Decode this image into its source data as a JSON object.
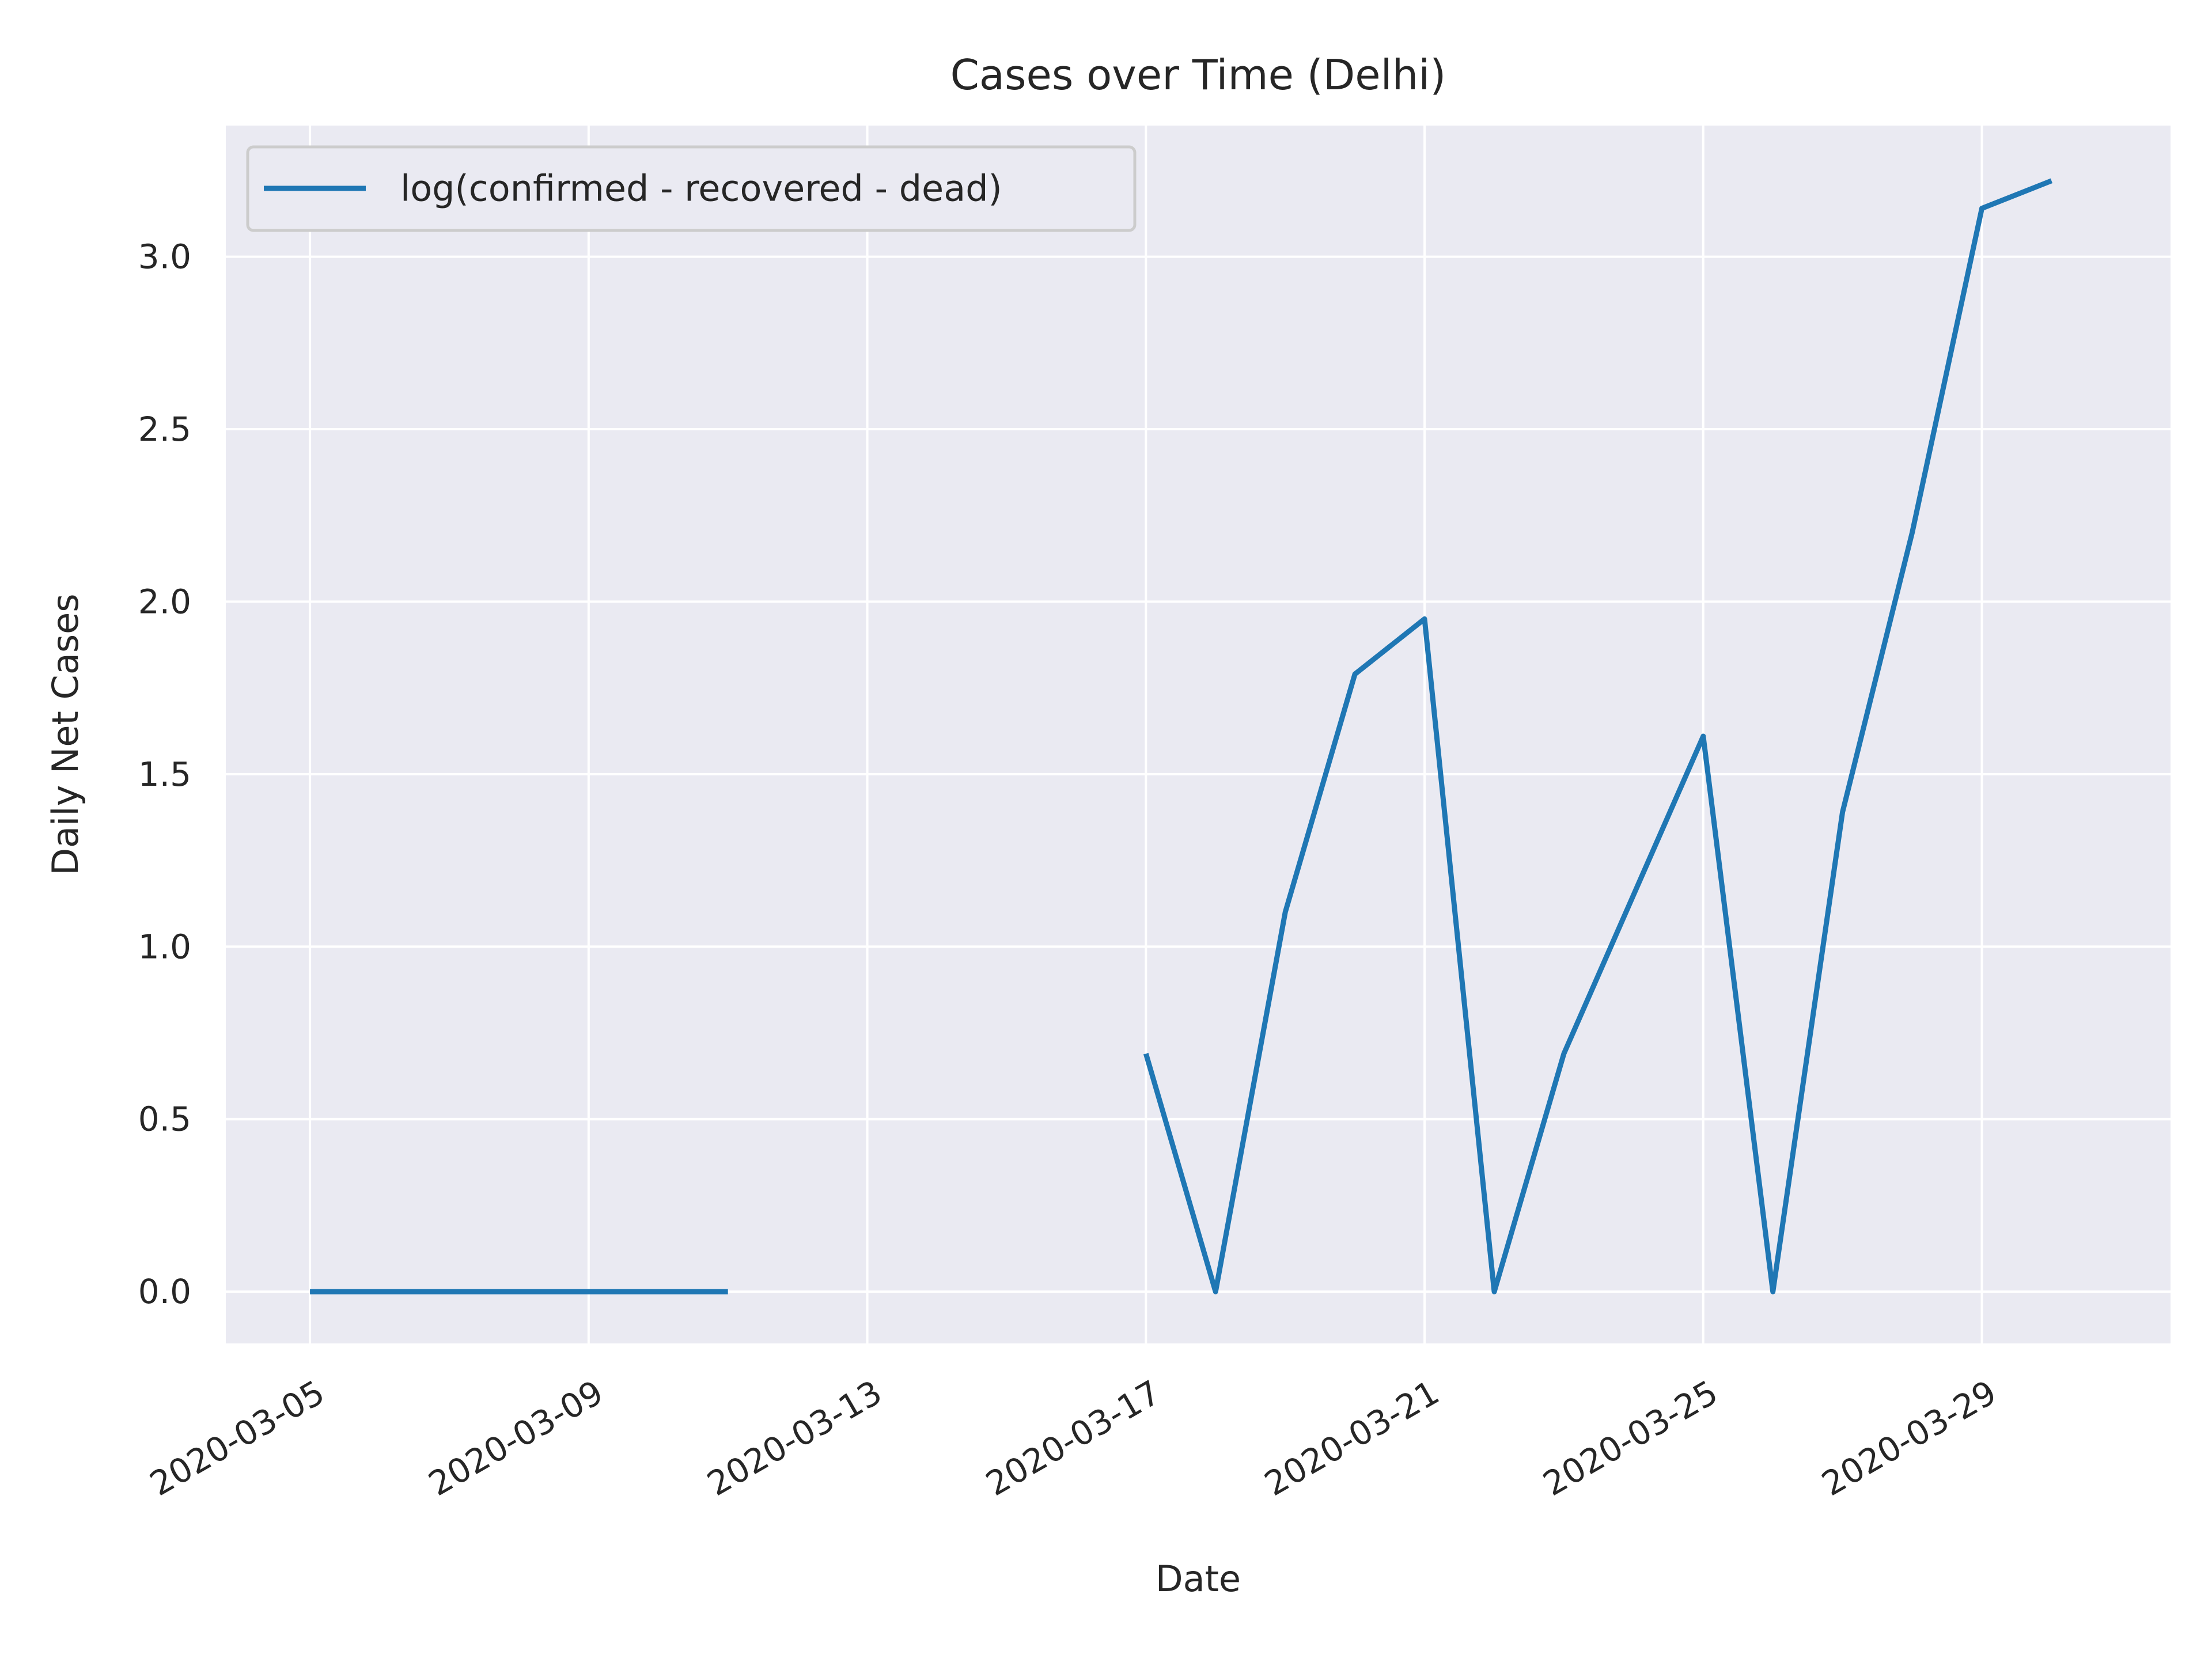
{
  "chart_data": {
    "type": "line",
    "title": "Cases over Time (Delhi)",
    "xlabel": "Date",
    "ylabel": "Daily Net Cases",
    "xlim": [
      "2020-03-03T19:00",
      "2020-03-31T17:00"
    ],
    "ylim": [
      -0.15,
      3.38
    ],
    "x_ticks": [
      "2020-03-05",
      "2020-03-09",
      "2020-03-13",
      "2020-03-17",
      "2020-03-21",
      "2020-03-25",
      "2020-03-29"
    ],
    "y_ticks": [
      0.0,
      0.5,
      1.0,
      1.5,
      2.0,
      2.5,
      3.0
    ],
    "y_tick_labels": [
      "0.0",
      "0.5",
      "1.0",
      "1.5",
      "2.0",
      "2.5",
      "3.0"
    ],
    "grid": true,
    "legend_position": "top-left",
    "colors": {
      "background": "#eaeaf2",
      "grid": "#ffffff",
      "series": "#1f77b4"
    },
    "series": [
      {
        "name": "log(confirmed - recovered - dead)",
        "segments": [
          {
            "x": [
              "2020-03-05",
              "2020-03-06",
              "2020-03-07",
              "2020-03-08",
              "2020-03-09",
              "2020-03-10",
              "2020-03-11"
            ],
            "y": [
              0,
              0,
              0,
              0,
              0,
              0,
              0
            ]
          },
          {
            "x": [
              "2020-03-17",
              "2020-03-18",
              "2020-03-19",
              "2020-03-20",
              "2020-03-21",
              "2020-03-22",
              "2020-03-23",
              "2020-03-24",
              "2020-03-25",
              "2020-03-26",
              "2020-03-27",
              "2020-03-28",
              "2020-03-29",
              "2020-03-30"
            ],
            "y": [
              0.69,
              0.0,
              1.1,
              1.79,
              1.95,
              0.0,
              0.69,
              1.15,
              1.61,
              0.0,
              1.39,
              2.2,
              3.14,
              3.22
            ]
          }
        ]
      }
    ]
  }
}
